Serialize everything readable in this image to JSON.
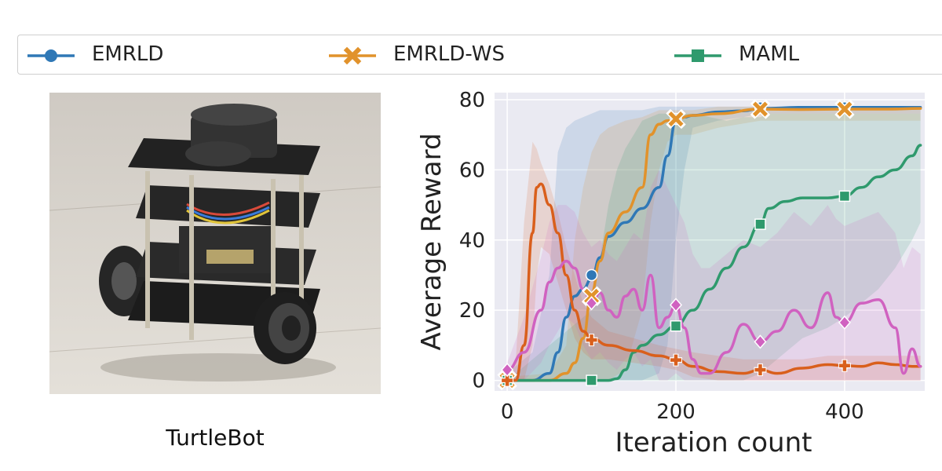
{
  "legend": {
    "items": [
      {
        "label": "EMRLD",
        "color": "#2f78b6",
        "marker": "circle"
      },
      {
        "label": "EMRLD-WS",
        "color": "#e1922b",
        "marker": "x"
      },
      {
        "label": "MAML",
        "color": "#2f9a6d",
        "marker": "square"
      }
    ]
  },
  "photo": {
    "caption": "TurtleBot",
    "alt": "TurtleBot robot"
  },
  "chart_data": {
    "type": "line",
    "xlabel": "Iteration count",
    "ylabel": "Average Reward",
    "xlim": [
      -15,
      495
    ],
    "ylim": [
      -3,
      82
    ],
    "xticks": [
      0,
      200,
      400
    ],
    "yticks": [
      0,
      20,
      40,
      60,
      80
    ],
    "grid": true,
    "legend_position": "top",
    "background": "#eaeaf2",
    "series": [
      {
        "name": "EMRLD",
        "color": "#2f78b6",
        "marker": "circle",
        "x": [
          0,
          30,
          50,
          60,
          70,
          80,
          90,
          100,
          110,
          120,
          140,
          160,
          180,
          190,
          200,
          210,
          220,
          250,
          280,
          300,
          350,
          400,
          450,
          490
        ],
        "y": [
          0,
          0,
          2,
          8,
          18,
          24,
          26,
          29,
          35,
          41,
          45,
          49,
          55,
          64,
          74,
          75,
          75.5,
          76.5,
          76.8,
          77.5,
          77.8,
          77.8,
          77.8,
          77.8
        ],
        "markers_x": [
          0,
          100,
          200,
          300,
          400
        ],
        "markers_y": [
          0,
          30,
          74.5,
          77.8,
          77.8
        ],
        "band_upper": [
          2,
          8,
          30,
          65,
          72,
          74,
          75,
          76,
          77,
          77,
          77,
          77,
          78,
          78,
          78,
          78,
          78,
          78,
          78,
          78,
          78,
          78,
          78,
          78
        ],
        "band_lower": [
          0,
          0,
          0,
          0,
          0,
          0,
          0,
          0,
          0,
          0,
          0,
          0,
          2,
          10,
          40,
          60,
          72,
          74,
          75,
          76,
          76,
          76,
          76,
          76
        ]
      },
      {
        "name": "EMRLD-WS",
        "color": "#e1922b",
        "marker": "x",
        "x": [
          0,
          50,
          70,
          80,
          90,
          100,
          110,
          120,
          140,
          160,
          170,
          180,
          190,
          200,
          220,
          250,
          300,
          350,
          400,
          450,
          490
        ],
        "y": [
          0,
          0,
          2,
          5,
          12,
          25,
          34,
          42,
          48,
          55,
          70,
          73,
          74,
          74.5,
          75.5,
          76,
          77.3,
          77.2,
          77.3,
          77.3,
          77.5
        ],
        "markers_x": [
          0,
          100,
          200,
          300,
          400
        ],
        "markers_y": [
          0,
          24,
          74.5,
          77.3,
          77.3
        ],
        "band_upper": [
          1,
          2,
          10,
          40,
          55,
          65,
          70,
          72,
          74,
          75,
          76,
          77,
          77,
          77,
          77,
          78,
          78,
          78,
          78,
          78,
          78
        ],
        "band_lower": [
          0,
          0,
          0,
          0,
          0,
          0,
          0,
          0,
          3,
          20,
          45,
          60,
          68,
          70,
          70,
          72,
          74,
          74,
          74,
          74,
          74
        ]
      },
      {
        "name": "MAML",
        "color": "#2f9a6d",
        "marker": "square",
        "x": [
          0,
          100,
          120,
          130,
          140,
          150,
          160,
          180,
          200,
          220,
          240,
          260,
          280,
          300,
          310,
          330,
          350,
          380,
          400,
          420,
          440,
          460,
          480,
          490
        ],
        "y": [
          0,
          0,
          0,
          0.5,
          3,
          8,
          10,
          13,
          15.5,
          20,
          26,
          32,
          38,
          44.5,
          49,
          51,
          52,
          52,
          52.5,
          55,
          58,
          60,
          64,
          67
        ],
        "markers_x": [
          0,
          100,
          200,
          300,
          400
        ],
        "markers_y": [
          0,
          0,
          15.5,
          44.5,
          52.5
        ],
        "band_upper": [
          0,
          20,
          50,
          60,
          66,
          70,
          74,
          76,
          76,
          76,
          75,
          74,
          75,
          75,
          76,
          76,
          76,
          76,
          76,
          76,
          76,
          76,
          76,
          76
        ],
        "band_lower": [
          0,
          0,
          0,
          0,
          0,
          0,
          0,
          0,
          0,
          0,
          0,
          0,
          0,
          2,
          4,
          8,
          12,
          15,
          18,
          22,
          26,
          32,
          40,
          45
        ]
      },
      {
        "name": "",
        "color": "#d95f1c",
        "marker": "plus",
        "x": [
          0,
          10,
          20,
          30,
          35,
          40,
          50,
          60,
          70,
          80,
          90,
          100,
          120,
          150,
          180,
          200,
          220,
          250,
          280,
          300,
          320,
          350,
          380,
          400,
          420,
          440,
          460,
          480,
          490
        ],
        "y": [
          0,
          0,
          10,
          42,
          55,
          56,
          50,
          42,
          30,
          20,
          14,
          12,
          10,
          8.5,
          7,
          6,
          4,
          2.5,
          2,
          3,
          2,
          3.5,
          4.5,
          4.2,
          4,
          5,
          4.5,
          4,
          4
        ],
        "markers_x": [
          0,
          100,
          200,
          300,
          400
        ],
        "markers_y": [
          0,
          11.5,
          5.8,
          3,
          4.2
        ],
        "band_upper": [
          1,
          5,
          45,
          68,
          66,
          62,
          56,
          48,
          38,
          30,
          22,
          18,
          14,
          12,
          10,
          9,
          8,
          7,
          6,
          6,
          6,
          6,
          7,
          7,
          7,
          7,
          7,
          7,
          7
        ],
        "band_lower": [
          0,
          0,
          0,
          10,
          30,
          38,
          36,
          28,
          20,
          12,
          8,
          6,
          6,
          5,
          4,
          3,
          1,
          0,
          0,
          0,
          0,
          0,
          0,
          0,
          0,
          0,
          0,
          0,
          0
        ]
      },
      {
        "name": "",
        "color": "#d062c0",
        "marker": "diamond",
        "x": [
          0,
          20,
          40,
          50,
          60,
          70,
          80,
          90,
          100,
          110,
          120,
          130,
          140,
          150,
          160,
          170,
          180,
          190,
          200,
          210,
          220,
          230,
          240,
          260,
          280,
          300,
          320,
          340,
          360,
          380,
          390,
          400,
          420,
          440,
          460,
          470,
          480,
          490
        ],
        "y": [
          3,
          8,
          20,
          28,
          32,
          34,
          32,
          26,
          22,
          25,
          20,
          18,
          24,
          26,
          20,
          30,
          15,
          18,
          21.5,
          15,
          6,
          2,
          2,
          8,
          16,
          11,
          14,
          20,
          15,
          25,
          18,
          16.5,
          22,
          23,
          15,
          2,
          9,
          4
        ],
        "markers_x": [
          0,
          100,
          200,
          300,
          400
        ],
        "markers_y": [
          3,
          22,
          21.5,
          11,
          16.5
        ],
        "band_upper": [
          5,
          18,
          35,
          45,
          50,
          50,
          48,
          42,
          38,
          40,
          36,
          34,
          38,
          42,
          40,
          55,
          60,
          55,
          50,
          45,
          36,
          32,
          32,
          36,
          40,
          38,
          42,
          48,
          44,
          50,
          46,
          44,
          46,
          48,
          42,
          32,
          38,
          36
        ],
        "band_lower": [
          1,
          0,
          5,
          10,
          14,
          18,
          16,
          10,
          6,
          8,
          5,
          3,
          6,
          8,
          4,
          6,
          0,
          0,
          2,
          0,
          0,
          0,
          0,
          0,
          0,
          0,
          0,
          0,
          0,
          0,
          0,
          0,
          0,
          0,
          0,
          0,
          0,
          0
        ]
      }
    ]
  }
}
